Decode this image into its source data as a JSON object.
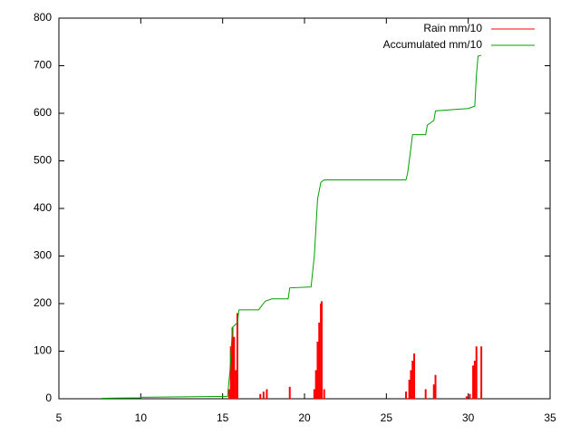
{
  "chart_data": {
    "type": "rain",
    "xlim": [
      5,
      35
    ],
    "xticks": [
      5,
      10,
      15,
      20,
      25,
      30,
      35
    ],
    "ylim": [
      0,
      800
    ],
    "yticks": [
      0,
      100,
      200,
      300,
      400,
      500,
      600,
      700,
      800
    ],
    "legend": "top-right",
    "series": [
      {
        "name": "Rain mm/10",
        "color": "#ff0000",
        "style": "impulses",
        "x": [
          15.4,
          15.5,
          15.6,
          15.7,
          15.8,
          15.9,
          17.3,
          17.5,
          17.7,
          19.1,
          20.6,
          20.7,
          20.8,
          20.9,
          21.0,
          21.05,
          21.2,
          26.2,
          26.4,
          26.5,
          26.6,
          26.7,
          27.4,
          27.9,
          28.0,
          29.9,
          30.1,
          30.3,
          30.4,
          30.5,
          30.8
        ],
        "values": [
          20,
          110,
          150,
          130,
          60,
          180,
          10,
          15,
          20,
          25,
          20,
          60,
          120,
          160,
          200,
          205,
          20,
          15,
          40,
          60,
          80,
          95,
          20,
          30,
          50,
          5,
          10,
          70,
          80,
          110,
          110
        ]
      },
      {
        "name": "Accumulated mm/10",
        "color": "#00a000",
        "style": "line",
        "x": [
          7.6,
          10.0,
          10.0,
          12.6,
          15.3,
          15.45,
          15.6,
          15.9,
          16.0,
          17.2,
          17.6,
          18.0,
          19.0,
          19.1,
          20.4,
          20.6,
          20.8,
          21.0,
          21.2,
          26.2,
          26.3,
          26.4,
          26.6,
          27.4,
          27.5,
          27.9,
          28.0,
          30.0,
          30.4,
          30.5,
          30.6,
          30.8
        ],
        "values": [
          1,
          2,
          3,
          4,
          5,
          60,
          150,
          160,
          187,
          187,
          205,
          210,
          210,
          233,
          235,
          300,
          420,
          455,
          460,
          460,
          475,
          500,
          555,
          555,
          575,
          585,
          605,
          610,
          615,
          680,
          720,
          722
        ]
      }
    ]
  }
}
